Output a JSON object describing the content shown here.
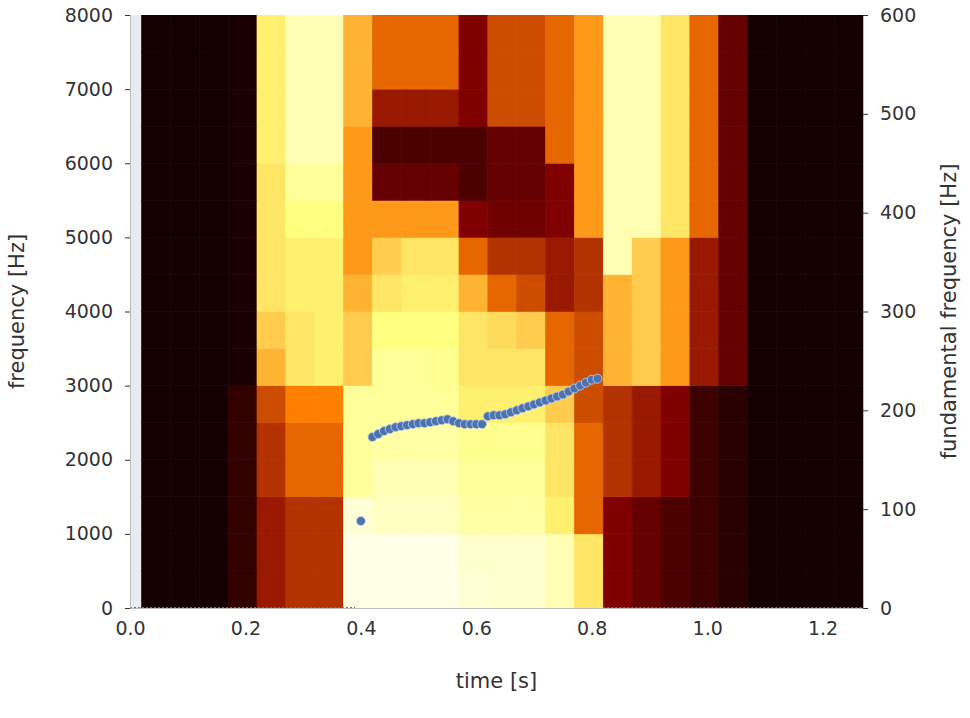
{
  "chart_data": {
    "type": "heatmap",
    "xlabel": "time [s]",
    "ylabel": "frequency [Hz]",
    "y2label": "fundamental frequency [Hz]",
    "xlim": [
      0,
      1.27
    ],
    "xticks": [
      {
        "value": 0,
        "label": "0.0"
      },
      0.2,
      0.4,
      0.6,
      0.8,
      {
        "value": 1,
        "label": "1.0"
      },
      1.2
    ],
    "ylim": [
      0,
      8000
    ],
    "yticks": [
      0,
      1000,
      2000,
      3000,
      4000,
      5000,
      6000,
      7000,
      8000
    ],
    "y2lim": [
      0,
      600
    ],
    "y2ticks": [
      0,
      100,
      200,
      300,
      400,
      500,
      600
    ],
    "grid": false,
    "color": "afmhot",
    "zlim": [
      0,
      100
    ],
    "time_bins": [
      0.02,
      0.07,
      0.12,
      0.17,
      0.22,
      0.27,
      0.32,
      0.37,
      0.42,
      0.47,
      0.52,
      0.57,
      0.62,
      0.67,
      0.72,
      0.77,
      0.82,
      0.87,
      0.92,
      0.97,
      1.02,
      1.07,
      1.12,
      1.17,
      1.22,
      1.27
    ],
    "freq_bins": [
      0,
      500,
      1000,
      1500,
      2000,
      2500,
      3000,
      3500,
      4000,
      4500,
      5000,
      5500,
      6000,
      6500,
      7000,
      7500,
      8000
    ],
    "intensity": [
      [
        4,
        4,
        4,
        10,
        30,
        35,
        35,
        95,
        95,
        95,
        95,
        92,
        90,
        90,
        85,
        70,
        25,
        20,
        15,
        12,
        8,
        4,
        4,
        4,
        4
      ],
      [
        4,
        4,
        4,
        10,
        30,
        35,
        35,
        95,
        95,
        95,
        95,
        90,
        90,
        90,
        85,
        70,
        25,
        20,
        15,
        12,
        8,
        4,
        4,
        4,
        4
      ],
      [
        4,
        4,
        4,
        10,
        30,
        35,
        35,
        92,
        88,
        88,
        88,
        82,
        82,
        82,
        72,
        45,
        25,
        20,
        15,
        12,
        8,
        4,
        4,
        4,
        4
      ],
      [
        4,
        4,
        4,
        10,
        35,
        45,
        45,
        80,
        85,
        85,
        85,
        80,
        80,
        80,
        70,
        45,
        35,
        30,
        25,
        12,
        8,
        4,
        4,
        4,
        4
      ],
      [
        4,
        4,
        4,
        10,
        35,
        45,
        45,
        80,
        82,
        82,
        82,
        78,
        78,
        78,
        70,
        45,
        35,
        30,
        25,
        12,
        8,
        4,
        4,
        4,
        4
      ],
      [
        4,
        4,
        4,
        10,
        40,
        50,
        50,
        80,
        80,
        80,
        80,
        72,
        72,
        72,
        65,
        40,
        35,
        30,
        25,
        12,
        8,
        4,
        4,
        4,
        4
      ],
      [
        4,
        4,
        4,
        5,
        60,
        70,
        72,
        65,
        80,
        80,
        78,
        70,
        70,
        70,
        45,
        40,
        60,
        65,
        55,
        30,
        20,
        4,
        4,
        4,
        4
      ],
      [
        4,
        4,
        4,
        5,
        65,
        70,
        72,
        65,
        75,
        75,
        75,
        70,
        68,
        65,
        45,
        40,
        60,
        65,
        55,
        30,
        20,
        4,
        4,
        4,
        4
      ],
      [
        4,
        4,
        4,
        5,
        70,
        72,
        72,
        60,
        70,
        72,
        72,
        60,
        45,
        40,
        30,
        35,
        60,
        65,
        55,
        30,
        20,
        4,
        4,
        4,
        4
      ],
      [
        4,
        4,
        4,
        5,
        70,
        72,
        72,
        55,
        65,
        70,
        70,
        45,
        35,
        35,
        30,
        35,
        85,
        65,
        55,
        30,
        20,
        4,
        4,
        4,
        4
      ],
      [
        4,
        4,
        4,
        5,
        70,
        75,
        75,
        55,
        55,
        55,
        55,
        25,
        22,
        22,
        25,
        55,
        85,
        85,
        70,
        45,
        20,
        4,
        4,
        4,
        4
      ],
      [
        4,
        4,
        4,
        5,
        70,
        80,
        80,
        55,
        20,
        20,
        20,
        15,
        20,
        20,
        25,
        55,
        85,
        85,
        70,
        45,
        20,
        4,
        4,
        4,
        4
      ],
      [
        4,
        4,
        4,
        5,
        72,
        85,
        85,
        55,
        15,
        15,
        15,
        15,
        20,
        20,
        45,
        55,
        85,
        85,
        70,
        45,
        20,
        4,
        4,
        4,
        4
      ],
      [
        4,
        4,
        4,
        5,
        72,
        85,
        85,
        60,
        30,
        30,
        30,
        25,
        40,
        40,
        45,
        55,
        85,
        85,
        70,
        45,
        20,
        4,
        4,
        4,
        4
      ],
      [
        4,
        4,
        4,
        5,
        72,
        85,
        85,
        60,
        45,
        45,
        45,
        25,
        40,
        40,
        45,
        55,
        85,
        85,
        70,
        45,
        20,
        4,
        4,
        4,
        4
      ],
      [
        4,
        4,
        4,
        5,
        72,
        85,
        85,
        60,
        45,
        45,
        45,
        25,
        40,
        40,
        45,
        55,
        85,
        85,
        70,
        45,
        20,
        4,
        4,
        4,
        4
      ]
    ],
    "series": [
      {
        "type": "scatter",
        "axis": "y2",
        "color": "#4c72b0",
        "marker": "circle",
        "x": [
          0.4,
          0.42,
          0.43,
          0.44,
          0.45,
          0.46,
          0.47,
          0.48,
          0.49,
          0.5,
          0.51,
          0.52,
          0.53,
          0.54,
          0.55,
          0.56,
          0.57,
          0.58,
          0.59,
          0.6,
          0.61,
          0.62,
          0.63,
          0.64,
          0.65,
          0.66,
          0.67,
          0.68,
          0.69,
          0.7,
          0.71,
          0.72,
          0.73,
          0.74,
          0.75,
          0.76,
          0.77,
          0.78,
          0.79,
          0.8,
          0.81
        ],
        "values": [
          88,
          173,
          176,
          179,
          181,
          183,
          184,
          185,
          186,
          187,
          187,
          188,
          189,
          190,
          191,
          189,
          187,
          186,
          186,
          186,
          186,
          194,
          195,
          195,
          196,
          198,
          200,
          202,
          204,
          206,
          208,
          210,
          212,
          214,
          216,
          219,
          222,
          225,
          228,
          231,
          232
        ]
      },
      {
        "type": "line",
        "axis": "y2",
        "color": "#4c72b0",
        "line_style": "dotted",
        "x": [
          0,
          0.39,
          0.4,
          0.82,
          1.27
        ],
        "values": [
          0,
          0,
          null,
          0,
          0
        ]
      }
    ]
  }
}
